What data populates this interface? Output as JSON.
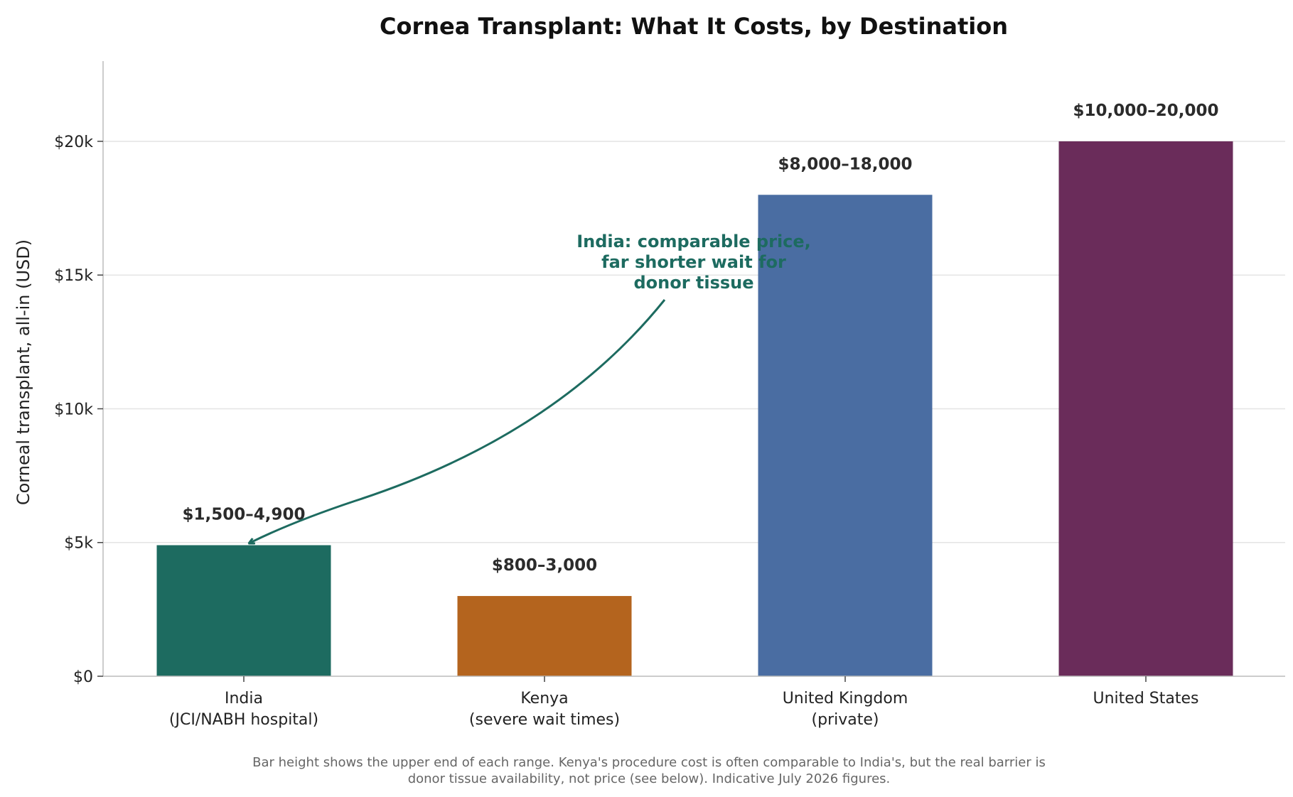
{
  "chart_data": {
    "type": "bar",
    "title": "Cornea Transplant: What It Costs, by Destination",
    "ylabel": "Corneal transplant, all-in (USD)",
    "xlabel": "",
    "ylim": [
      0,
      23000
    ],
    "yticks": [
      {
        "value": 0,
        "label": "$0"
      },
      {
        "value": 5000,
        "label": "$5k"
      },
      {
        "value": 10000,
        "label": "$10k"
      },
      {
        "value": 15000,
        "label": "$15k"
      },
      {
        "value": 20000,
        "label": "$20k"
      }
    ],
    "grid": "horizontal",
    "categories": [
      {
        "line1": "India",
        "line2": "(JCI/NABH hospital)"
      },
      {
        "line1": "Kenya",
        "line2": "(severe wait times)"
      },
      {
        "line1": "United Kingdom",
        "line2": "(private)"
      },
      {
        "line1": "United States",
        "line2": ""
      }
    ],
    "values": [
      4900,
      3000,
      18000,
      20000
    ],
    "value_labels": [
      "$1,500–4,900",
      "$800–3,000",
      "$8,000–18,000",
      "$10,000–20,000"
    ],
    "colors": [
      "#1d6b60",
      "#b4641e",
      "#4a6da2",
      "#6a2c5a"
    ],
    "annotation": {
      "lines": [
        "India: comparable price,",
        "far shorter wait for",
        "donor tissue"
      ],
      "color": "#1d6b60",
      "points_to_category": 0
    },
    "footnote": [
      "Bar height shows the upper end of each range. Kenya's procedure cost is often comparable to India's, but the real barrier is",
      "donor tissue availability, not price (see below). Indicative July 2026 figures."
    ]
  }
}
